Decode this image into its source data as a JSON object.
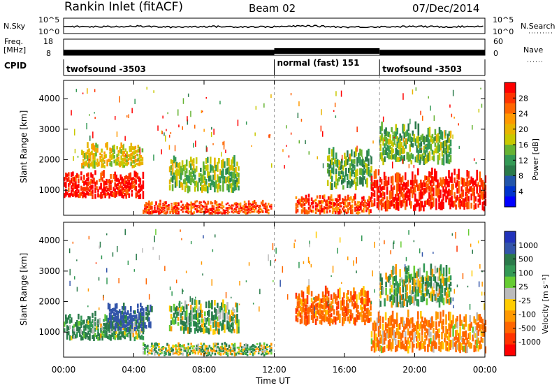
{
  "header": {
    "station": "Rankin Inlet (fitACF)",
    "beam": "Beam 02",
    "date": "07/Dec/2014"
  },
  "strip": {
    "nsky_label": "N.Sky",
    "nsky_ticks": [
      "10^5",
      "10^0"
    ],
    "nsearch_label": "N.Search",
    "nsearch_ticks": [
      "10^5",
      "10^0"
    ],
    "freq_label": "Freq.",
    "freq_unit": "[MHz]",
    "freq_ticks": [
      "18",
      "8"
    ],
    "nave_label": "Nave",
    "nave_ticks": [
      "60",
      "0"
    ],
    "cpid_label": "CPID",
    "cpid_segments": [
      {
        "label": "twofsound -3503",
        "start_hour": 0.0,
        "end_hour": 12.0
      },
      {
        "label": "normal (fast) 151",
        "start_hour": 12.0,
        "end_hour": 18.0
      },
      {
        "label": "twofsound -3503",
        "start_hour": 18.0,
        "end_hour": 24.0
      }
    ]
  },
  "axes": {
    "ylabel": "Slant Range [km]",
    "xlabel": "Time UT",
    "xticks": [
      "00:00",
      "04:00",
      "08:00",
      "12:00",
      "16:00",
      "20:00",
      "00:00"
    ],
    "yticks": [
      "1000",
      "2000",
      "3000",
      "4000"
    ]
  },
  "power_colorbar": {
    "label": "Power [dB]",
    "ticks": [
      "28",
      "24",
      "20",
      "16",
      "12",
      "8",
      "4"
    ],
    "colors": [
      "#ff0000",
      "#ff3300",
      "#ff6600",
      "#ff9900",
      "#e8b400",
      "#c8c800",
      "#66b333",
      "#339955",
      "#2a7a4a",
      "#2255aa",
      "#0033cc",
      "#0000ff"
    ]
  },
  "velocity_colorbar": {
    "label": "Velocity [m s⁻¹]",
    "ticks": [
      "1000",
      "500",
      "100",
      "25",
      "-25",
      "-100",
      "-500",
      "-1000"
    ],
    "colors": [
      "#2233bb",
      "#3355aa",
      "#2a7a4a",
      "#339955",
      "#66cc33",
      "#bbbbbb",
      "#ffcc00",
      "#ff9900",
      "#ff6600",
      "#ff3300",
      "#ff0000"
    ]
  },
  "chart_data": [
    {
      "type": "heatmap",
      "title": "Power",
      "xlabel": "Time UT",
      "ylabel": "Slant Range [km]",
      "xlim": [
        0,
        24
      ],
      "ylim": [
        180,
        4600
      ],
      "colorbar": "Power [dB]",
      "colorbar_range": [
        0,
        30
      ],
      "regions": [
        {
          "t0": 0.0,
          "t1": 4.5,
          "r0": 700,
          "r1": 1700,
          "level": 29
        },
        {
          "t0": 4.5,
          "t1": 11.8,
          "r0": 200,
          "r1": 700,
          "level": 27
        },
        {
          "t0": 1.0,
          "t1": 4.5,
          "r0": 1700,
          "r1": 2600,
          "level": 18
        },
        {
          "t0": 6.0,
          "t1": 10.0,
          "r0": 900,
          "r1": 2200,
          "level": 14
        },
        {
          "t0": 13.2,
          "t1": 17.5,
          "r0": 200,
          "r1": 900,
          "level": 26
        },
        {
          "t0": 15.0,
          "t1": 17.5,
          "r0": 1000,
          "r1": 2500,
          "level": 12
        },
        {
          "t0": 17.5,
          "t1": 24.0,
          "r0": 300,
          "r1": 1800,
          "level": 29
        },
        {
          "t0": 18.0,
          "t1": 22.0,
          "r0": 1800,
          "r1": 3300,
          "level": 13
        }
      ]
    },
    {
      "type": "heatmap",
      "title": "Velocity",
      "xlabel": "Time UT",
      "ylabel": "Slant Range [km]",
      "xlim": [
        0,
        24
      ],
      "ylim": [
        180,
        4600
      ],
      "colorbar": "Velocity [m s⁻¹]",
      "colorbar_range": [
        -1000,
        1000
      ],
      "regions": [
        {
          "t0": 0.0,
          "t1": 4.5,
          "r0": 700,
          "r1": 1700,
          "level": 150
        },
        {
          "t0": 2.5,
          "t1": 5.0,
          "r0": 1000,
          "r1": 2000,
          "level": 600
        },
        {
          "t0": 4.5,
          "t1": 11.8,
          "r0": 200,
          "r1": 700,
          "level": 60
        },
        {
          "t0": 6.0,
          "t1": 10.0,
          "r0": 900,
          "r1": 2200,
          "level": 120
        },
        {
          "t0": 13.2,
          "t1": 17.5,
          "r0": 1200,
          "r1": 2600,
          "level": -300
        },
        {
          "t0": 17.5,
          "t1": 24.0,
          "r0": 300,
          "r1": 1800,
          "level": -200
        },
        {
          "t0": 18.0,
          "t1": 22.0,
          "r0": 1800,
          "r1": 3300,
          "level": 80
        }
      ]
    },
    {
      "type": "line",
      "title": "N.Sky",
      "xlim": [
        0,
        24
      ],
      "ylim": [
        0,
        5
      ],
      "yscale": "log",
      "x": [
        0,
        2,
        4,
        6,
        8,
        10,
        12,
        14,
        16,
        18,
        20,
        22,
        24
      ],
      "values": [
        2.3,
        2.2,
        2.4,
        2.1,
        2.3,
        2.2,
        2.2,
        2.5,
        2.1,
        2.2,
        2.3,
        2.2,
        2.4
      ]
    },
    {
      "type": "line",
      "title": "Freq.",
      "xlim": [
        0,
        24
      ],
      "ylim": [
        8,
        18
      ],
      "x": [
        0,
        12,
        12,
        18,
        18,
        24
      ],
      "values": [
        10.5,
        10.5,
        11.5,
        11.5,
        10.5,
        10.5
      ]
    }
  ]
}
